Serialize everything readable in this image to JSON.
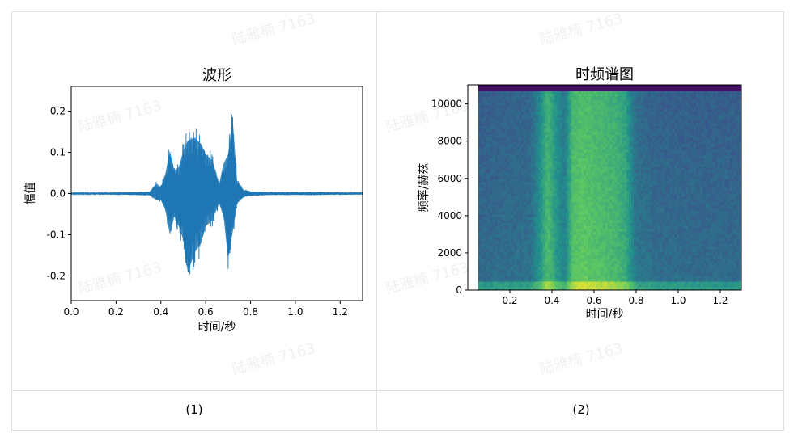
{
  "watermark": "陆雅楠 7163",
  "captions": [
    "(1)",
    "(2)"
  ],
  "chart_data": [
    {
      "type": "line",
      "title": "波形",
      "xlabel": "时间/秒",
      "ylabel": "幅值",
      "xlim": [
        0.0,
        1.3
      ],
      "ylim": [
        -0.26,
        0.26
      ],
      "xticks": [
        "0.0",
        "0.2",
        "0.4",
        "0.6",
        "0.8",
        "1.0",
        "1.2"
      ],
      "yticks": [
        "0.2",
        "0.1",
        "0.0",
        "-0.1",
        "-0.2"
      ],
      "line_color": "#1f77b4",
      "envelope": {
        "x": [
          0.0,
          0.2,
          0.35,
          0.38,
          0.4,
          0.42,
          0.44,
          0.46,
          0.48,
          0.5,
          0.52,
          0.55,
          0.58,
          0.6,
          0.63,
          0.66,
          0.68,
          0.7,
          0.72,
          0.74,
          0.77,
          0.8,
          0.9,
          1.0,
          1.1,
          1.2,
          1.3
        ],
        "upper": [
          0.002,
          0.003,
          0.005,
          0.03,
          0.02,
          0.06,
          0.13,
          0.07,
          0.08,
          0.13,
          0.16,
          0.17,
          0.15,
          0.12,
          0.1,
          0.03,
          0.09,
          0.12,
          0.23,
          0.04,
          0.01,
          0.006,
          0.004,
          0.004,
          0.004,
          0.003,
          0.003
        ],
        "lower": [
          -0.002,
          -0.003,
          -0.005,
          -0.02,
          -0.02,
          -0.05,
          -0.125,
          -0.07,
          -0.1,
          -0.14,
          -0.24,
          -0.18,
          -0.15,
          -0.1,
          -0.08,
          -0.03,
          -0.07,
          -0.2,
          -0.12,
          -0.03,
          -0.01,
          -0.006,
          -0.004,
          -0.004,
          -0.004,
          -0.003,
          -0.003
        ]
      }
    },
    {
      "type": "heatmap",
      "title": "时频谱图",
      "xlabel": "时间/秒",
      "ylabel": "频率/赫兹",
      "xlim": [
        0.0,
        1.3
      ],
      "ylim": [
        0,
        11025
      ],
      "xticks": [
        "0.2",
        "0.4",
        "0.6",
        "0.8",
        "1.0",
        "1.2"
      ],
      "yticks": [
        "10000",
        "8000",
        "6000",
        "4000",
        "2000",
        "0"
      ],
      "colormap": "viridis",
      "data_start_x": 0.05,
      "energy_profile": {
        "x": [
          0.05,
          0.3,
          0.35,
          0.38,
          0.42,
          0.46,
          0.5,
          0.55,
          0.6,
          0.65,
          0.7,
          0.75,
          0.8,
          0.9,
          1.3
        ],
        "level": [
          0.35,
          0.38,
          0.55,
          0.7,
          0.55,
          0.45,
          0.72,
          0.75,
          0.72,
          0.7,
          0.68,
          0.62,
          0.4,
          0.36,
          0.35
        ]
      }
    }
  ]
}
